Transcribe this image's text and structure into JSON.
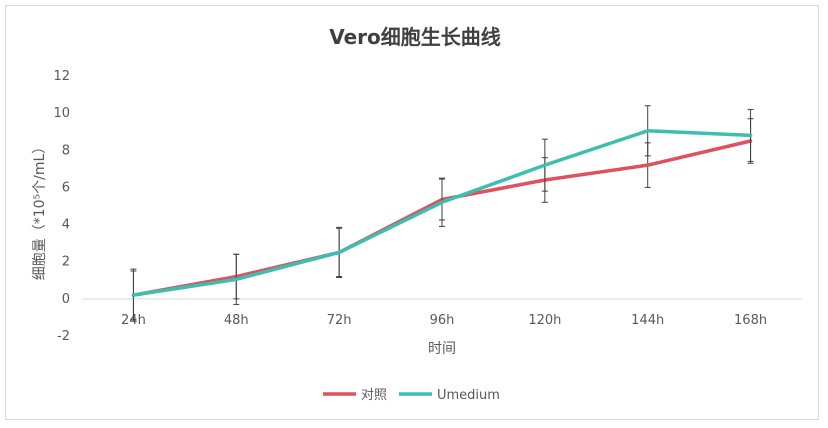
{
  "chart_data": {
    "type": "line",
    "title": "Vero细胞生长曲线",
    "xlabel": "时间",
    "ylabel": "细胞量（*10⁵个/mL）",
    "categories": [
      "24h",
      "48h",
      "72h",
      "96h",
      "120h",
      "144h",
      "168h"
    ],
    "ylim": [
      -2,
      12
    ],
    "yticks": [
      -2,
      0,
      2,
      4,
      6,
      8,
      10,
      12
    ],
    "grid": false,
    "legend_position": "bottom",
    "series": [
      {
        "name": "对照",
        "color": "#e0505e",
        "values": [
          0.2,
          1.2,
          2.5,
          5.35,
          6.4,
          7.2,
          8.5
        ],
        "error": [
          1.3,
          1.2,
          1.3,
          1.1,
          1.2,
          1.2,
          1.2
        ]
      },
      {
        "name": "Umedium",
        "color": "#3cbfae",
        "values": [
          0.2,
          1.05,
          2.5,
          5.2,
          7.2,
          9.05,
          8.8
        ],
        "error": [
          1.4,
          1.35,
          1.35,
          1.3,
          1.4,
          1.35,
          1.4
        ]
      }
    ]
  }
}
